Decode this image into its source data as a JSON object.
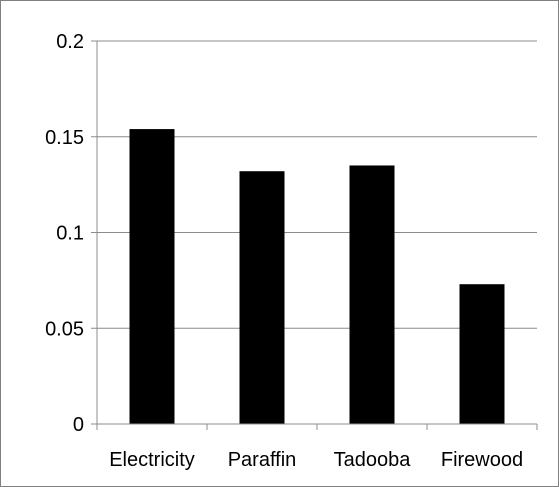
{
  "chart_data": {
    "type": "bar",
    "categories": [
      "Electricity",
      "Paraffin",
      "Tadooba",
      "Firewood"
    ],
    "values": [
      0.154,
      0.132,
      0.135,
      0.073
    ],
    "title": "",
    "xlabel": "",
    "ylabel": "",
    "ylim": [
      0,
      0.2
    ],
    "yticks": [
      "0",
      "0.05",
      "0.1",
      "0.15",
      "0.2"
    ],
    "grid": true,
    "legend": "none",
    "colors": {
      "bar": "#000000",
      "grid": "#8c8c8c",
      "axis": "#8c8c8c"
    }
  }
}
